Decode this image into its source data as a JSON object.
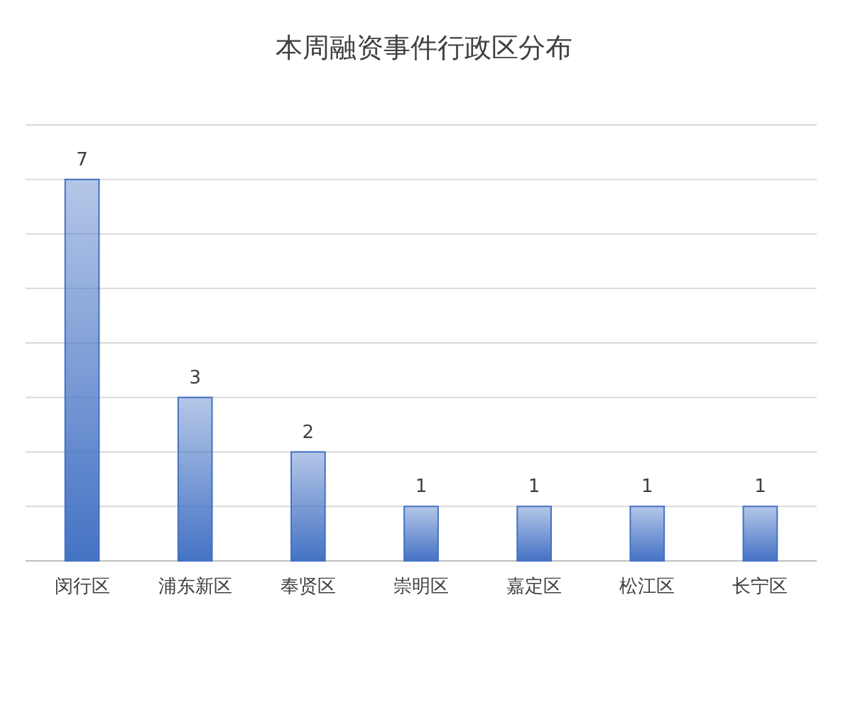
{
  "chart_data": {
    "type": "bar",
    "title": "本周融资事件行政区分布",
    "categories": [
      "闵行区",
      "浦东新区",
      "奉贤区",
      "崇明区",
      "嘉定区",
      "松江区",
      "长宁区"
    ],
    "values": [
      7,
      3,
      2,
      1,
      1,
      1,
      1
    ],
    "color": "#4472c4",
    "data_labels": true,
    "grid": "y",
    "tick_labels": "x",
    "ylim": [
      0,
      8
    ],
    "yticks": [
      {
        "value": 0,
        "label": null
      },
      {
        "value": 1,
        "label": null
      },
      {
        "value": 2,
        "label": null
      },
      {
        "value": 3,
        "label": null
      },
      {
        "value": 4,
        "label": null
      },
      {
        "value": 5,
        "label": null
      },
      {
        "value": 6,
        "label": null
      },
      {
        "value": 7,
        "label": null
      },
      {
        "value": 8,
        "label": null
      }
    ]
  }
}
